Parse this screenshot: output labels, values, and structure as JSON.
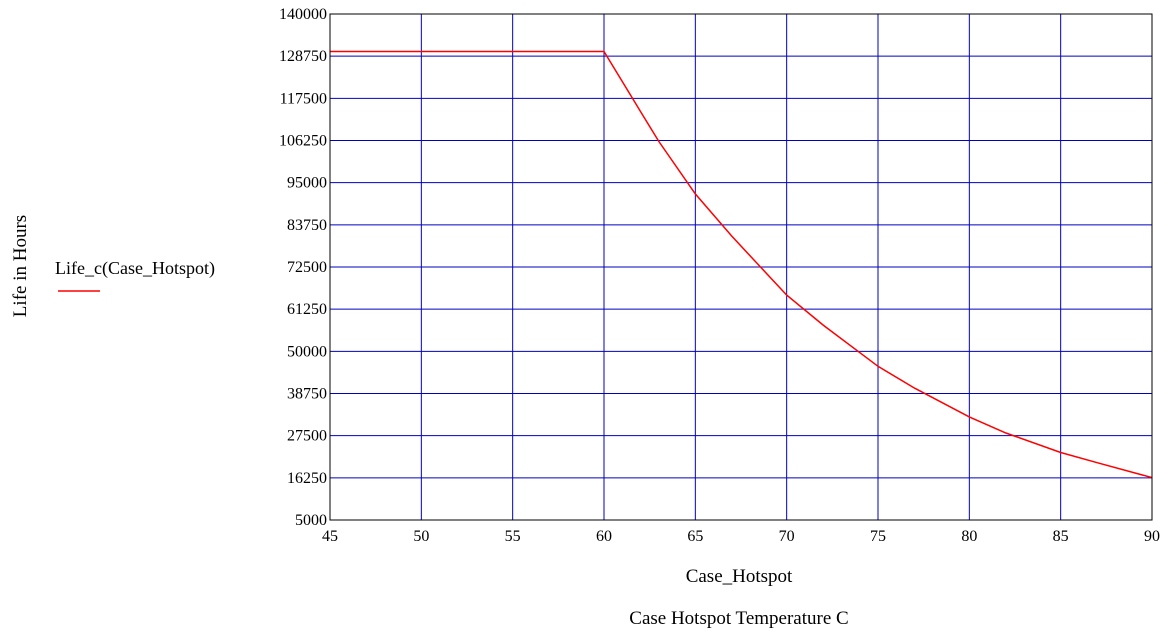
{
  "chart_data": {
    "type": "line",
    "title": "",
    "x_variable_label": "Case_Hotspot",
    "xlabel": "Case Hotspot Temperature C",
    "ylabel": "Life in Hours",
    "xlim": [
      45,
      90
    ],
    "ylim": [
      5000,
      140000
    ],
    "x_ticks": [
      "45",
      "50",
      "55",
      "60",
      "65",
      "70",
      "75",
      "80",
      "85",
      "90"
    ],
    "y_ticks": [
      "5000",
      "16250",
      "27500",
      "38750",
      "50000",
      "61250",
      "72500",
      "83750",
      "95000",
      "106250",
      "117500",
      "128750",
      "140000"
    ],
    "grid": true,
    "legend_position": "left",
    "colors": {
      "grid": "#0000c0",
      "series": "#ff0000",
      "frame": "#000000"
    },
    "series": [
      {
        "name": "Life_c(Case_Hotspot)",
        "x": [
          45,
          50,
          55,
          60,
          62,
          63,
          65,
          67,
          70,
          72,
          75,
          77,
          80,
          82,
          85,
          87,
          90
        ],
        "y": [
          130000,
          130000,
          130000,
          130000,
          114000,
          106000,
          92000,
          80700,
          65000,
          57000,
          46000,
          40200,
          32500,
          28200,
          23000,
          20300,
          16300
        ]
      }
    ]
  }
}
